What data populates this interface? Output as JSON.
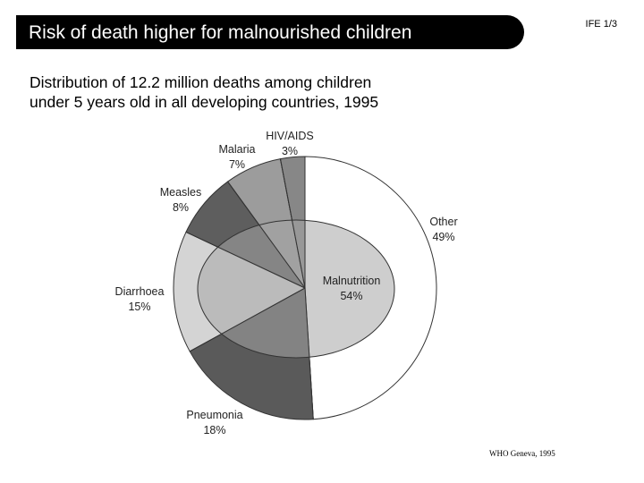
{
  "header": {
    "title": "Risk of death higher for malnourished children",
    "slide_id": "IFE 1/3"
  },
  "subtitle": {
    "line1": "Distribution of 12.2 million deaths among children",
    "line2": "under 5 years old in all developing countries, 1995"
  },
  "source": "WHO Geneva, 1995",
  "chart_data": {
    "type": "pie",
    "title": "Distribution of 12.2 million deaths among children under 5 years old in all developing countries, 1995",
    "slices": [
      {
        "name": "Other",
        "label": "Other",
        "percent_label": "49%",
        "value": 49,
        "color": "#ffffff"
      },
      {
        "name": "Pneumonia",
        "label": "Pneumonia",
        "percent_label": "18%",
        "value": 18,
        "color": "#5a5a5a"
      },
      {
        "name": "Diarrhoea",
        "label": "Diarrhoea",
        "percent_label": "15%",
        "value": 15,
        "color": "#d4d4d4"
      },
      {
        "name": "Measles",
        "label": "Measles",
        "percent_label": "8%",
        "value": 8,
        "color": "#5e5e5e"
      },
      {
        "name": "Malaria",
        "label": "Malaria",
        "percent_label": "7%",
        "value": 7,
        "color": "#9c9c9c"
      },
      {
        "name": "HIV/AIDS",
        "label": "HIV/AIDS",
        "percent_label": "3%",
        "value": 3,
        "color": "#878787"
      }
    ],
    "overlay": {
      "name": "Malnutrition",
      "label": "Malnutrition",
      "percent_label": "54%",
      "value": 54,
      "color": "#a6a6a6"
    }
  }
}
